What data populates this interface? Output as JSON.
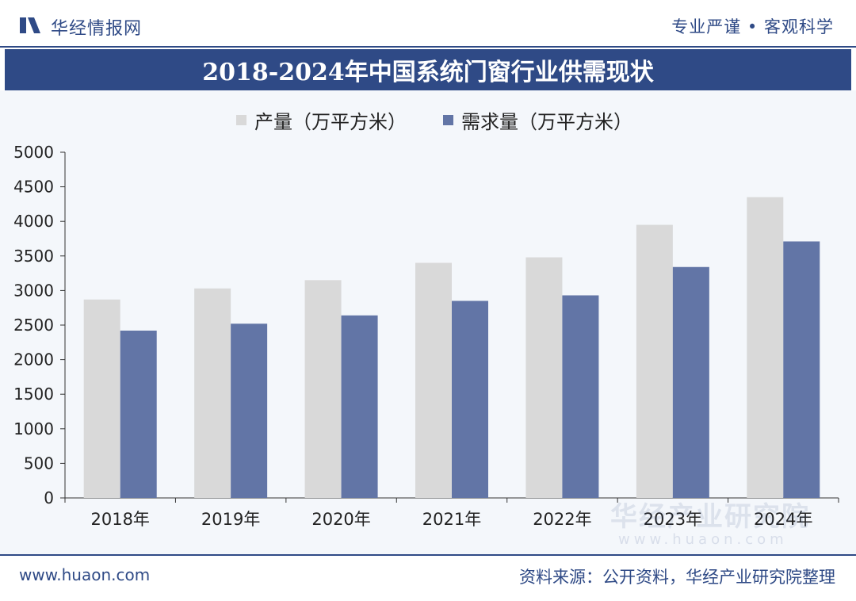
{
  "header": {
    "brand": "华经情报网",
    "slogan": "专业严谨 • 客观科学"
  },
  "colors": {
    "primary": "#2f4a86",
    "production": "#d9d9d9",
    "demand": "#6275a6"
  },
  "chart_data": {
    "type": "bar",
    "title": "2018-2024年中国系统门窗行业供需现状",
    "categories": [
      "2018年",
      "2019年",
      "2020年",
      "2021年",
      "2022年",
      "2023年",
      "2024年"
    ],
    "series": [
      {
        "name": "产量（万平方米）",
        "values": [
          2870,
          3030,
          3150,
          3400,
          3480,
          3950,
          4350
        ]
      },
      {
        "name": "需求量（万平方米）",
        "values": [
          2420,
          2520,
          2640,
          2850,
          2930,
          3340,
          3710
        ]
      }
    ],
    "ylim": [
      0,
      5000
    ],
    "yticks": [
      "0",
      "500",
      "1000",
      "1500",
      "2000",
      "2500",
      "3000",
      "3500",
      "4000",
      "4500",
      "5000"
    ],
    "xlabel": "",
    "ylabel": "",
    "legend": "top"
  },
  "watermark": {
    "name": "华经产业研究院",
    "url": "www.huaon.com"
  },
  "footer": {
    "site": "www.huaon.com",
    "source": "资料来源：公开资料，华经产业研究院整理"
  }
}
